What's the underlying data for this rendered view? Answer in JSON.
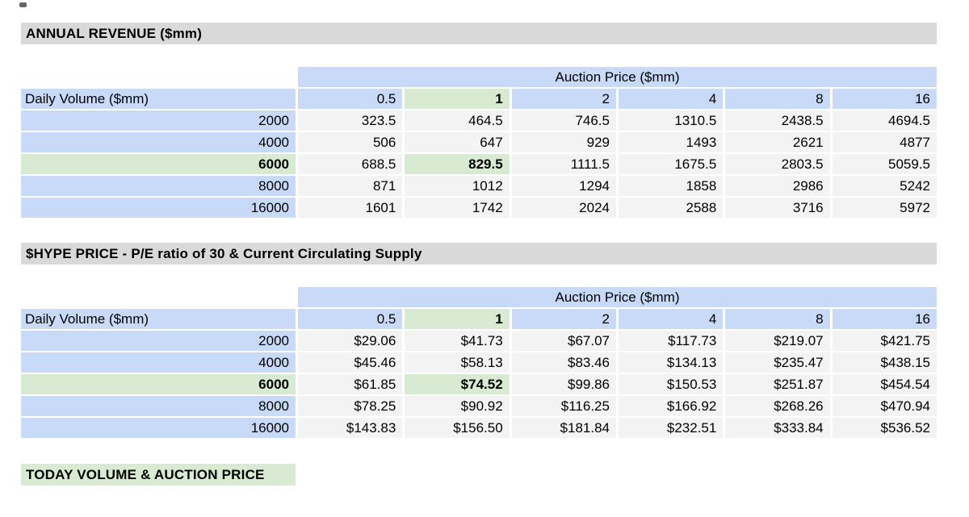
{
  "colors": {
    "page_background": "#ffffff",
    "title_bar_gray": "#d9d9d9",
    "header_blue": "#c9daf8",
    "highlight_green": "#d9ead3",
    "data_cell_gray": "#f3f3f3",
    "text": "#000000"
  },
  "chart_data": [
    {
      "type": "table",
      "title": "ANNUAL REVENUE ($mm)",
      "corner_label": "Daily Volume ($mm)",
      "col_group_label": "Auction Price ($mm)",
      "columns": [
        "0.5",
        "1",
        "2",
        "4",
        "8",
        "16"
      ],
      "highlighted_column": "1",
      "highlighted_row": "6000",
      "highlighted_cell": "829.5",
      "rows": [
        {
          "label": "2000",
          "values": [
            "323.5",
            "464.5",
            "746.5",
            "1310.5",
            "2438.5",
            "4694.5"
          ]
        },
        {
          "label": "4000",
          "values": [
            "506",
            "647",
            "929",
            "1493",
            "2621",
            "4877"
          ]
        },
        {
          "label": "6000",
          "values": [
            "688.5",
            "829.5",
            "1111.5",
            "1675.5",
            "2803.5",
            "5059.5"
          ]
        },
        {
          "label": "8000",
          "values": [
            "871",
            "1012",
            "1294",
            "1858",
            "2986",
            "5242"
          ]
        },
        {
          "label": "16000",
          "values": [
            "1601",
            "1742",
            "2024",
            "2588",
            "3716",
            "5972"
          ]
        }
      ]
    },
    {
      "type": "table",
      "title": "$HYPE PRICE - P/E ratio of 30 & Current Circulating Supply",
      "corner_label": "Daily Volume ($mm)",
      "col_group_label": "Auction Price ($mm)",
      "columns": [
        "0.5",
        "1",
        "2",
        "4",
        "8",
        "16"
      ],
      "highlighted_column": "1",
      "highlighted_row": "6000",
      "highlighted_cell": "$74.52",
      "rows": [
        {
          "label": "2000",
          "values": [
            "$29.06",
            "$41.73",
            "$67.07",
            "$117.73",
            "$219.07",
            "$421.75"
          ]
        },
        {
          "label": "4000",
          "values": [
            "$45.46",
            "$58.13",
            "$83.46",
            "$134.13",
            "$235.47",
            "$438.15"
          ]
        },
        {
          "label": "6000",
          "values": [
            "$61.85",
            "$74.52",
            "$99.86",
            "$150.53",
            "$251.87",
            "$454.54"
          ]
        },
        {
          "label": "8000",
          "values": [
            "$78.25",
            "$90.92",
            "$116.25",
            "$166.92",
            "$268.26",
            "$470.94"
          ]
        },
        {
          "label": "16000",
          "values": [
            "$143.83",
            "$156.50",
            "$181.84",
            "$232.51",
            "$333.84",
            "$536.52"
          ]
        }
      ]
    }
  ],
  "footer_section": {
    "title": "TODAY VOLUME & AUCTION PRICE"
  }
}
